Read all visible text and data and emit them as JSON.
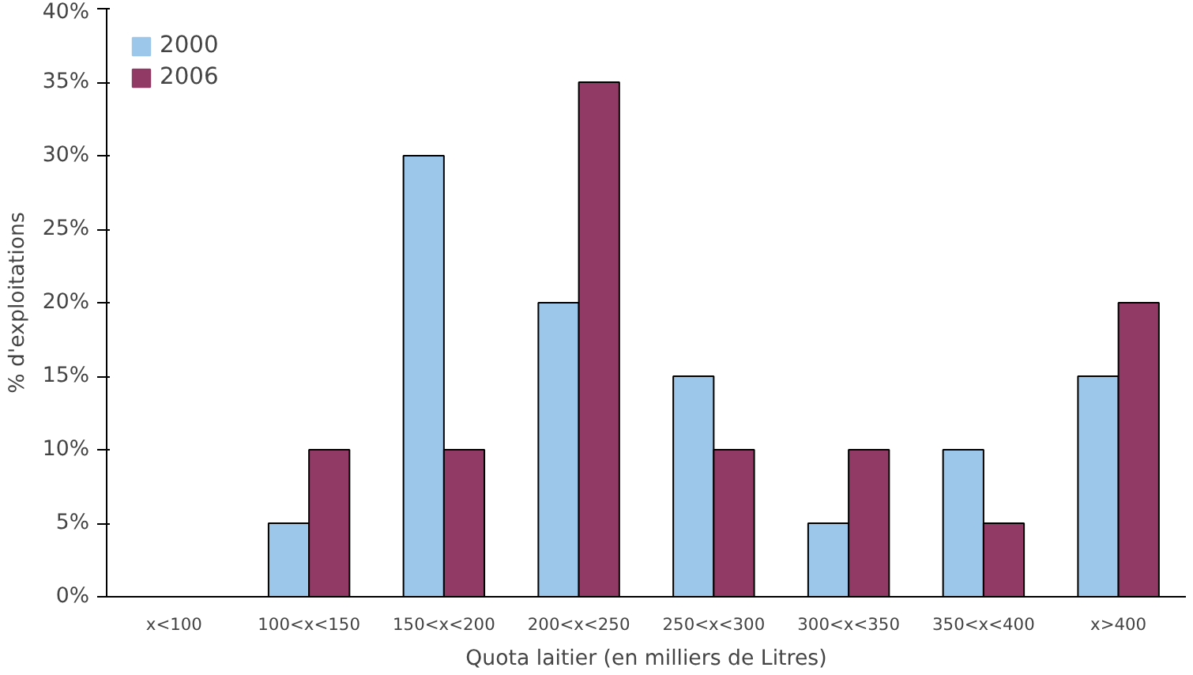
{
  "chart_data": {
    "type": "bar",
    "xlabel": "Quota laitier (en milliers de Litres)",
    "ylabel": "% d'exploitations",
    "categories": [
      "x<100",
      "100<x<150",
      "150<x<200",
      "200<x<250",
      "250<x<300",
      "300<x<350",
      "350<x<400",
      "x>400"
    ],
    "series": [
      {
        "name": "2000",
        "color": "#9cc7ea",
        "values": [
          0,
          5,
          30,
          20,
          15,
          5,
          10,
          15
        ]
      },
      {
        "name": "2006",
        "color": "#913a66",
        "values": [
          0,
          10,
          10,
          35,
          10,
          10,
          5,
          20
        ]
      }
    ],
    "ylim": [
      0,
      40
    ],
    "yticks": [
      {
        "value": 0,
        "label": "0%"
      },
      {
        "value": 5,
        "label": "5%"
      },
      {
        "value": 10,
        "label": "10%"
      },
      {
        "value": 15,
        "label": "15%"
      },
      {
        "value": 20,
        "label": "20%"
      },
      {
        "value": 25,
        "label": "25%"
      },
      {
        "value": 30,
        "label": "30%"
      },
      {
        "value": 35,
        "label": "35%"
      },
      {
        "value": 40,
        "label": "40%"
      }
    ],
    "grid": false,
    "legend": "top left"
  }
}
